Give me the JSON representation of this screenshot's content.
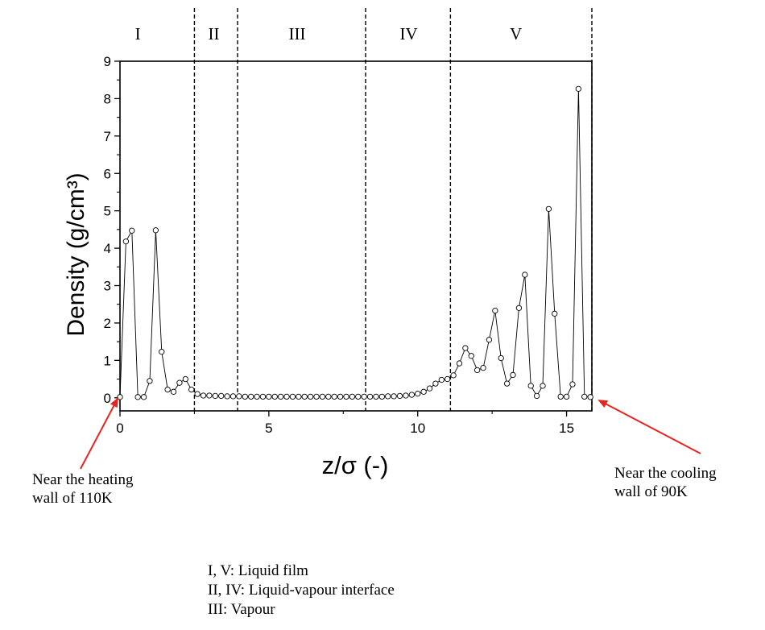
{
  "chart_data": {
    "type": "scatter",
    "xlabel": "z/σ (-)",
    "ylabel": "Density (g/cm³)",
    "xlim": [
      0,
      15.85
    ],
    "ylim": [
      -0.35,
      9
    ],
    "x_ticks": [
      "0",
      "5",
      "10",
      "15"
    ],
    "y_ticks": [
      "0",
      "1",
      "2",
      "3",
      "4",
      "5",
      "6",
      "7",
      "8",
      "9"
    ],
    "grid": false,
    "region_boundaries": [
      2.5,
      3.95,
      8.25,
      11.1,
      15.85
    ],
    "regions": [
      {
        "label": "I",
        "x": 0.6
      },
      {
        "label": "II",
        "x": 3.15
      },
      {
        "label": "III",
        "x": 5.95
      },
      {
        "label": "IV",
        "x": 9.7
      },
      {
        "label": "V",
        "x": 13.3
      }
    ],
    "series": [
      {
        "x": [
          0.0,
          0.2,
          0.4,
          0.6,
          0.8,
          1.0,
          1.2,
          1.4,
          1.6,
          1.8,
          2.0,
          2.2,
          2.4,
          2.6,
          2.8,
          3.0,
          3.2,
          3.4,
          3.6,
          3.8,
          4.0,
          4.2,
          4.4,
          4.6,
          4.8,
          5.0,
          5.2,
          5.4,
          5.6,
          5.8,
          6.0,
          6.2,
          6.4,
          6.6,
          6.8,
          7.0,
          7.2,
          7.4,
          7.6,
          7.8,
          8.0,
          8.2,
          8.4,
          8.6,
          8.8,
          9.0,
          9.2,
          9.4,
          9.6,
          9.8,
          10.0,
          10.2,
          10.4,
          10.6,
          10.8,
          11.0,
          11.2,
          11.4,
          11.6,
          11.8,
          12.0,
          12.2,
          12.4,
          12.6,
          12.8,
          13.0,
          13.2,
          13.4,
          13.6,
          13.8,
          14.0,
          14.2,
          14.4,
          14.6,
          14.8,
          15.0,
          15.2,
          15.4,
          15.6,
          15.8
        ],
        "y": [
          0.02,
          4.18,
          4.47,
          0.02,
          0.02,
          0.45,
          4.48,
          1.23,
          0.22,
          0.16,
          0.4,
          0.5,
          0.22,
          0.1,
          0.06,
          0.06,
          0.05,
          0.05,
          0.04,
          0.04,
          0.04,
          0.03,
          0.03,
          0.03,
          0.03,
          0.03,
          0.03,
          0.03,
          0.03,
          0.03,
          0.03,
          0.03,
          0.03,
          0.03,
          0.03,
          0.03,
          0.03,
          0.03,
          0.03,
          0.03,
          0.03,
          0.03,
          0.03,
          0.03,
          0.03,
          0.04,
          0.04,
          0.05,
          0.06,
          0.08,
          0.11,
          0.16,
          0.25,
          0.38,
          0.48,
          0.5,
          0.6,
          0.92,
          1.33,
          1.12,
          0.74,
          0.8,
          1.55,
          2.33,
          1.06,
          0.38,
          0.61,
          2.4,
          3.29,
          0.32,
          0.05,
          0.32,
          5.05,
          2.25,
          0.03,
          0.03,
          0.36,
          8.26,
          0.03,
          0.02
        ]
      }
    ]
  },
  "annotations": {
    "left_line1": "Near the heating",
    "left_line2": "wall of 110K",
    "right_line1": "Near the cooling",
    "right_line2": "wall of 90K"
  },
  "legend": {
    "line1": "I, V: Liquid film",
    "line2": "II, IV: Liquid-vapour interface",
    "line3": "III: Vapour"
  }
}
